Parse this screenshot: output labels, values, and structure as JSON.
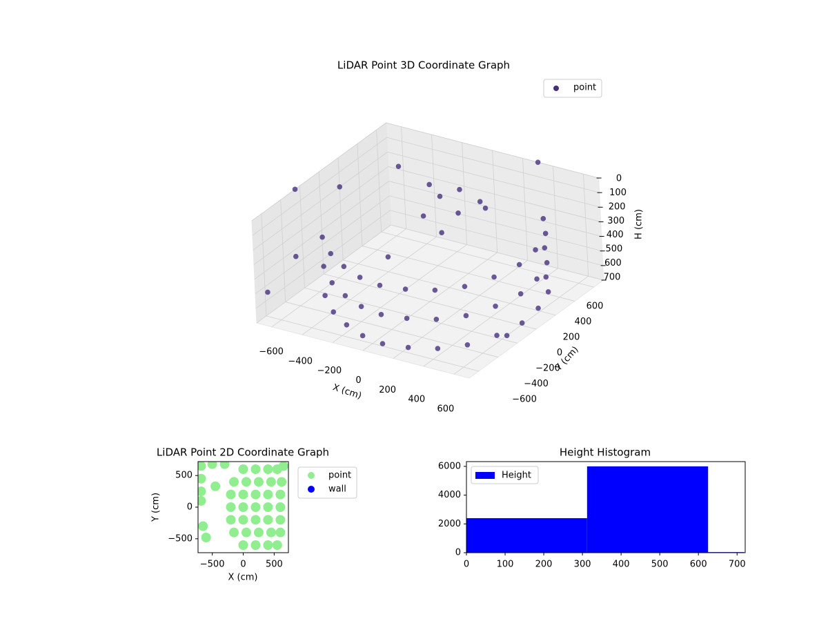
{
  "chart_data": [
    {
      "type": "scatter3d",
      "title": "LiDAR Point 3D Coordinate Graph",
      "xlabel": "X (cm)",
      "ylabel": "Y (cm)",
      "zlabel": "H (cm)",
      "xlim": [
        -700,
        700
      ],
      "ylim": [
        -700,
        700
      ],
      "zlim": [
        700,
        0
      ],
      "xticks": [
        {
          "value": -600,
          "label": "−600"
        },
        {
          "value": -400,
          "label": "−400"
        },
        {
          "value": -200,
          "label": "−200"
        },
        0,
        200,
        400,
        600
      ],
      "yticks": [
        {
          "value": -600,
          "label": "−600"
        },
        {
          "value": -400,
          "label": "−400"
        },
        {
          "value": -200,
          "label": "−200"
        },
        0,
        200,
        400,
        600
      ],
      "zticks": [
        0,
        100,
        200,
        300,
        400,
        500,
        600,
        700
      ],
      "grid": true,
      "legend": "upper right",
      "series": [
        {
          "name": "point",
          "color": "#46307e",
          "x": [
            -500,
            -500,
            -500,
            -350,
            -350,
            -350,
            -200,
            -200,
            -200,
            -50,
            -50,
            -50,
            100,
            100,
            100,
            250,
            250,
            250,
            400,
            400,
            400,
            520,
            520,
            520,
            600,
            600,
            600,
            640,
            640,
            640,
            620,
            620,
            620,
            560,
            560,
            560,
            450,
            450,
            450,
            -100,
            0,
            50,
            -200,
            100,
            -150,
            0,
            200,
            -700,
            -600,
            -400,
            -550,
            300,
            700,
            -650,
            -200
          ],
          "y": [
            -300,
            -300,
            -300,
            -450,
            -450,
            -450,
            -550,
            -550,
            -550,
            -620,
            -620,
            -620,
            -650,
            -650,
            -650,
            -620,
            -620,
            -620,
            -550,
            -550,
            -550,
            -430,
            -430,
            -430,
            -250,
            -250,
            -250,
            -50,
            -50,
            -50,
            150,
            150,
            150,
            350,
            350,
            350,
            500,
            500,
            500,
            300,
            350,
            250,
            350,
            400,
            200,
            150,
            300,
            -250,
            50,
            350,
            -500,
            700,
            -300,
            -650,
            -100
          ],
          "z": [
            250,
            450,
            650,
            250,
            450,
            650,
            250,
            450,
            650,
            250,
            450,
            650,
            250,
            450,
            650,
            250,
            450,
            650,
            250,
            450,
            650,
            250,
            450,
            650,
            250,
            450,
            650,
            250,
            450,
            650,
            250,
            450,
            650,
            250,
            450,
            650,
            250,
            450,
            650,
            150,
            100,
            200,
            120,
            180,
            250,
            300,
            150,
            0,
            100,
            50,
            300,
            0,
            600,
            500,
            400
          ]
        }
      ]
    },
    {
      "type": "scatter",
      "title": "LiDAR Point 2D Coordinate Graph",
      "xlabel": "X (cm)",
      "ylabel": "Y (cm)",
      "xlim": [
        -730,
        730
      ],
      "ylim": [
        -720,
        720
      ],
      "xticks": [
        {
          "value": -500,
          "label": "−500"
        },
        0,
        500
      ],
      "yticks": [
        {
          "value": -500,
          "label": "−500"
        },
        0,
        500
      ],
      "legend": "outside right",
      "series": [
        {
          "name": "point",
          "color": "#90ee90",
          "x": [
            0,
            200,
            400,
            550,
            -150,
            50,
            250,
            450,
            620,
            -200,
            0,
            200,
            400,
            600,
            -200,
            0,
            200,
            400,
            600,
            -200,
            0,
            200,
            400,
            600,
            -150,
            50,
            250,
            450,
            600,
            0,
            200,
            400,
            550,
            -680,
            -680,
            -680,
            -680,
            -500,
            -300,
            -450,
            -650,
            -600,
            650
          ],
          "y": [
            600,
            600,
            600,
            600,
            400,
            400,
            400,
            400,
            400,
            200,
            200,
            200,
            200,
            200,
            0,
            0,
            0,
            0,
            0,
            -200,
            -200,
            -200,
            -200,
            -200,
            -400,
            -400,
            -400,
            -400,
            -400,
            -600,
            -600,
            -600,
            -600,
            650,
            450,
            250,
            100,
            680,
            680,
            330,
            -300,
            -480,
            650
          ]
        },
        {
          "name": "wall",
          "color": "#0000ff",
          "x": [],
          "y": []
        }
      ]
    },
    {
      "type": "histogram",
      "title": "Height Histogram",
      "name": "Height",
      "color": "#0000ff",
      "legend": "upper left",
      "bins": [
        0,
        312,
        625,
        718
      ],
      "values": [
        2400,
        6000,
        40
      ],
      "xlim": [
        0,
        721
      ],
      "ylim": [
        0,
        6330
      ],
      "xticks": [
        0,
        100,
        200,
        300,
        400,
        500,
        600,
        700
      ],
      "yticks": [
        0,
        2000,
        4000,
        6000
      ]
    }
  ]
}
